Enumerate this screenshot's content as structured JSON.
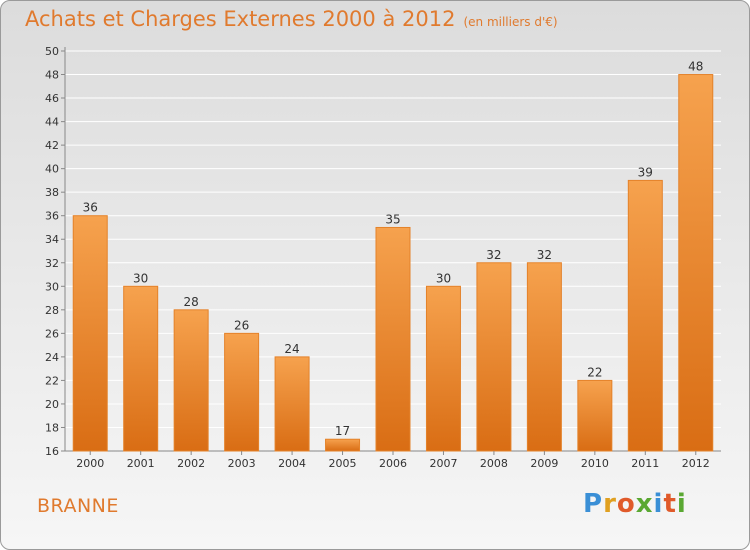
{
  "title": "Achats et Charges Externes 2000 à 2012",
  "unit": "(en milliers d'€)",
  "commune": "BRANNE",
  "logo": {
    "text": "Proxiti",
    "letters": [
      "P",
      "r",
      "o",
      "x",
      "i",
      "t",
      "i"
    ],
    "colors": [
      "#3a8fd6",
      "#e0a020",
      "#e05a2a",
      "#5aa832",
      "#3a8fd6",
      "#e05a2a",
      "#5aa832"
    ]
  },
  "colors": {
    "bar": "#f08a2c",
    "bar_light": "#f6a24e",
    "bar_dark": "#d96d14",
    "text": "#e07a2e",
    "grid": "#ffffff"
  },
  "chart_data": {
    "type": "bar",
    "categories": [
      "2000",
      "2001",
      "2002",
      "2003",
      "2004",
      "2005",
      "2006",
      "2007",
      "2008",
      "2009",
      "2010",
      "2011",
      "2012"
    ],
    "values": [
      36,
      30,
      28,
      26,
      24,
      17,
      35,
      30,
      32,
      32,
      22,
      39,
      48
    ],
    "ylim": [
      16,
      50
    ],
    "yticks": [
      16,
      18,
      20,
      22,
      24,
      26,
      28,
      30,
      32,
      34,
      36,
      38,
      40,
      42,
      44,
      46,
      48,
      50
    ],
    "title": "Achats et Charges Externes 2000 à 2012",
    "xlabel": "",
    "ylabel": "",
    "grid": true,
    "data_labels": true
  }
}
